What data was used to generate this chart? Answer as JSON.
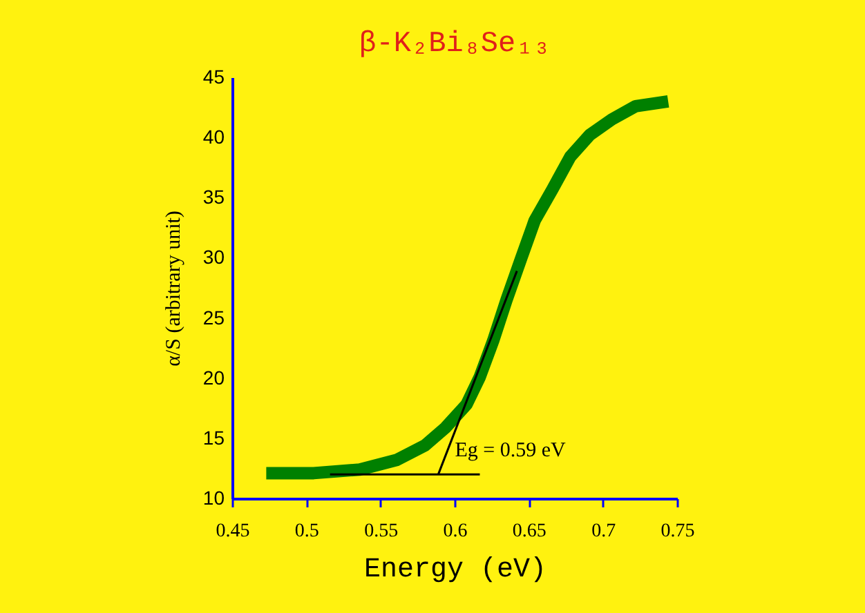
{
  "chart_data": {
    "type": "line",
    "title": "β-K₂Bi₈Se₁₃",
    "xlabel": "Energy (eV)",
    "ylabel": "α/S (arbitrary unit)",
    "xlim": [
      0.45,
      0.75
    ],
    "xticks": [
      0.45,
      0.5,
      0.55,
      0.6,
      0.65,
      0.7,
      0.75
    ],
    "ylim": [
      10,
      45
    ],
    "yticks": [
      10,
      15,
      20,
      25,
      30,
      35,
      40,
      45
    ],
    "grid": false,
    "marker": "none",
    "line_style": "solid",
    "series": [
      {
        "color": "#008000",
        "x": [
          0.473,
          0.505,
          0.536,
          0.561,
          0.58,
          0.594,
          0.608,
          0.617,
          0.626,
          0.635,
          0.645,
          0.654,
          0.666,
          0.678,
          0.691,
          0.706,
          0.722,
          0.744
        ],
        "values": [
          12.1,
          12.1,
          12.4,
          13.2,
          14.4,
          15.9,
          17.8,
          20.1,
          23.1,
          26.5,
          30.0,
          33.1,
          35.7,
          38.4,
          40.2,
          41.5,
          42.6,
          43.0
        ]
      },
      {
        "color": "#000000",
        "x": [
          0.516,
          0.617
        ],
        "values": [
          12,
          12
        ]
      },
      {
        "color": "#000000",
        "x": [
          0.589,
          0.642
        ],
        "values": [
          12,
          28.9
        ]
      }
    ],
    "annotations": [
      {
        "text": "Eg = 0.59 eV",
        "x": 0.589,
        "y": 12
      }
    ]
  }
}
